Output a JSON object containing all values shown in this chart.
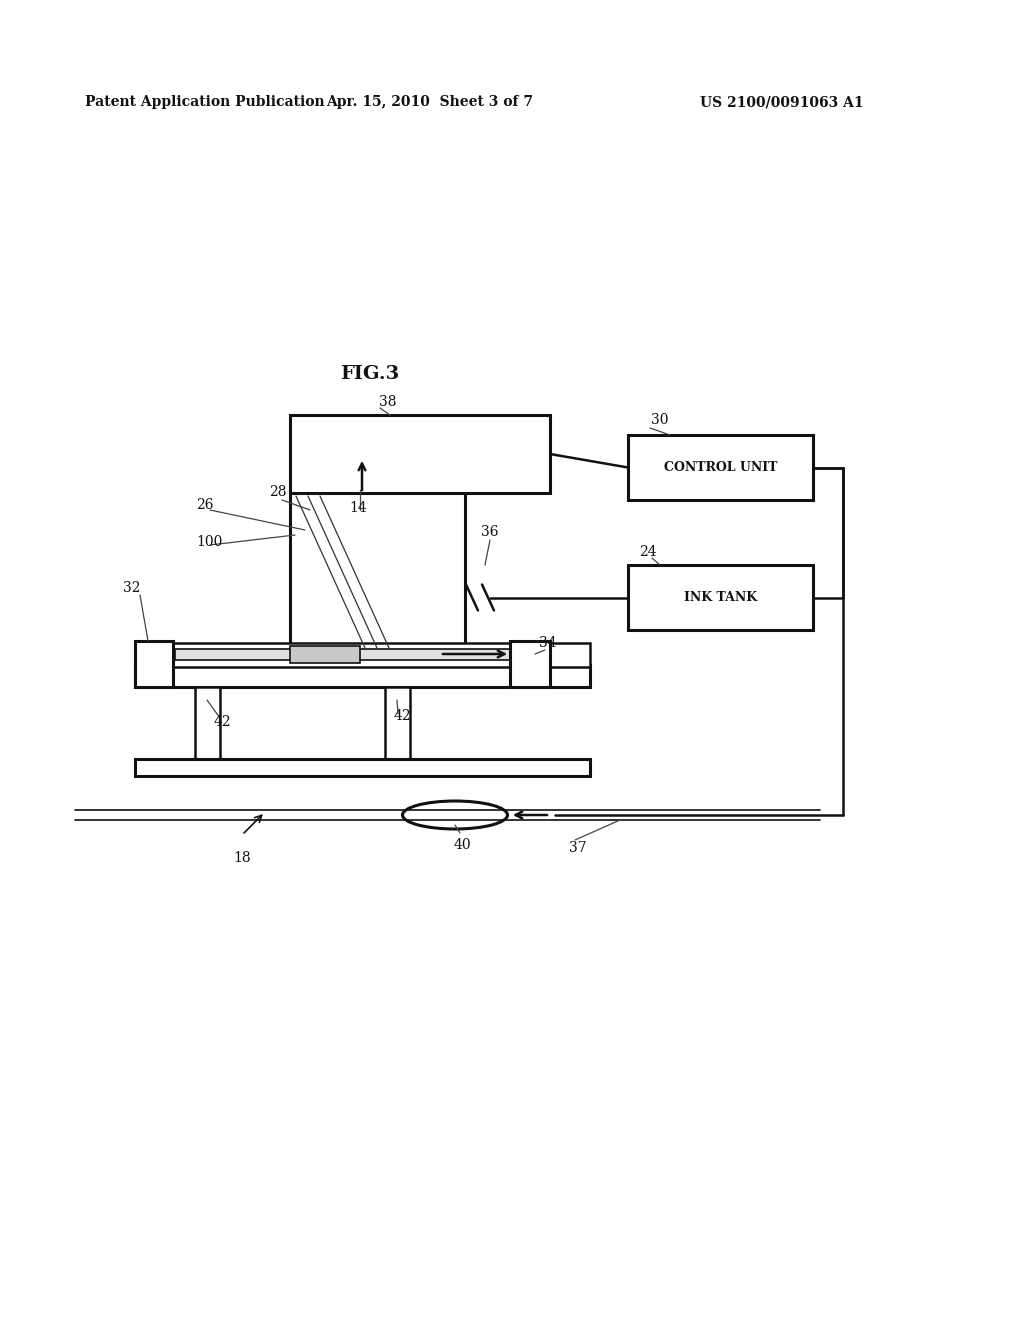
{
  "bg_color": "#ffffff",
  "text_color": "#111111",
  "header_left": "Patent Application Publication",
  "header_mid": "Apr. 15, 2010  Sheet 3 of 7",
  "header_right": "US 2100/0091063 A1",
  "fig_label": "FIG.3"
}
